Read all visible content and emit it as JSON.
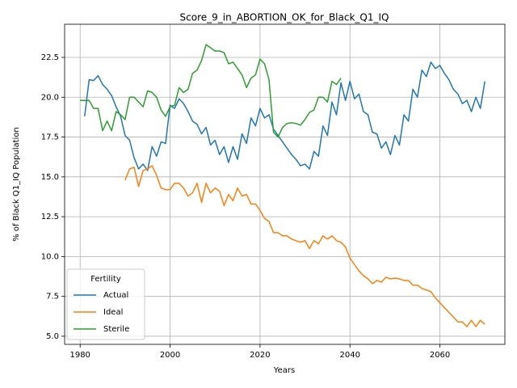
{
  "chart_data": {
    "type": "line",
    "title": "Score_9_in_ABORTION_OK_for_Black_Q1_IQ",
    "x_label": "Years",
    "y_label": "% of Black Q1_IQ Population",
    "legend_title": "Fertility",
    "legend_loc": "lower left",
    "grid": true,
    "xlim": [
      1976.55,
      2074.45
    ],
    "xticks": [
      1980,
      2000,
      2020,
      2040,
      2060
    ],
    "ylim": [
      4.49,
      24.58
    ],
    "yticks": [
      {
        "value": 5,
        "label": "5.0"
      },
      7.5,
      {
        "value": 10,
        "label": "10.0"
      },
      12.5,
      {
        "value": 15,
        "label": "15.0"
      },
      17.5,
      {
        "value": 20,
        "label": "20.0"
      },
      22.5
    ],
    "series": [
      {
        "name": "Actual",
        "color": "#1f77b4",
        "x": [
          1981,
          1982,
          1983,
          1984,
          1985,
          1986,
          1987,
          1988,
          1989,
          1990,
          1991,
          1992,
          1993,
          1994,
          1995,
          1996,
          1997,
          1998,
          1999,
          2000,
          2001,
          2002,
          2003,
          2004,
          2005,
          2006,
          2007,
          2008,
          2009,
          2010,
          2011,
          2012,
          2013,
          2014,
          2015,
          2016,
          2017,
          2018,
          2019,
          2020,
          2021,
          2022,
          2023,
          2024,
          2025,
          2026,
          2027,
          2028,
          2029,
          2030,
          2031,
          2032,
          2033,
          2034,
          2035,
          2036,
          2037,
          2038,
          2039,
          2040,
          2041,
          2042,
          2043,
          2044,
          2045,
          2046,
          2047,
          2048,
          2049,
          2050,
          2051,
          2052,
          2053,
          2054,
          2055,
          2056,
          2057,
          2058,
          2059,
          2060,
          2061,
          2062,
          2063,
          2064,
          2065,
          2066,
          2067,
          2068,
          2069,
          2070
        ],
        "values": [
          18.8,
          21.1,
          21.05,
          21.35,
          20.8,
          20.5,
          20.1,
          19.4,
          18.8,
          17.6,
          17.3,
          16.2,
          15.5,
          15.8,
          15.4,
          16.9,
          16.3,
          17.2,
          17.1,
          19.5,
          19.3,
          19.9,
          19.6,
          19.1,
          18.5,
          18.3,
          17.7,
          18.1,
          17.0,
          17.3,
          16.4,
          16.9,
          15.9,
          16.9,
          16.1,
          17.7,
          17.1,
          18.7,
          18.2,
          19.3,
          18.7,
          18.9,
          18.0,
          17.6,
          17.2,
          16.8,
          16.4,
          16.1,
          15.7,
          15.8,
          15.5,
          16.6,
          16.3,
          18.2,
          17.6,
          19.7,
          18.9,
          20.9,
          19.8,
          21.0,
          19.9,
          20.2,
          19.1,
          18.9,
          17.8,
          17.7,
          16.8,
          17.2,
          16.4,
          17.6,
          17.0,
          18.9,
          18.5,
          20.5,
          20.0,
          21.7,
          21.3,
          22.2,
          21.8,
          22.0,
          21.5,
          21.1,
          20.5,
          20.2,
          19.6,
          19.8,
          19.1,
          20.0,
          19.3,
          21.0
        ]
      },
      {
        "name": "Ideal",
        "color": "#ff7f0e",
        "x": [
          1990,
          1991,
          1992,
          1993,
          1994,
          1995,
          1996,
          1997,
          1998,
          1999,
          2000,
          2001,
          2002,
          2003,
          2004,
          2005,
          2006,
          2007,
          2008,
          2009,
          2010,
          2011,
          2012,
          2013,
          2014,
          2015,
          2016,
          2017,
          2018,
          2019,
          2020,
          2021,
          2022,
          2023,
          2024,
          2025,
          2026,
          2027,
          2028,
          2029,
          2030,
          2031,
          2032,
          2033,
          2034,
          2035,
          2036,
          2037,
          2038,
          2039,
          2040,
          2041,
          2042,
          2043,
          2044,
          2045,
          2046,
          2047,
          2048,
          2049,
          2050,
          2051,
          2052,
          2053,
          2054,
          2055,
          2056,
          2057,
          2058,
          2059,
          2060,
          2061,
          2062,
          2063,
          2064,
          2065,
          2066,
          2067,
          2068,
          2069,
          2070
        ],
        "values": [
          14.8,
          15.5,
          15.6,
          14.4,
          15.4,
          15.5,
          15.7,
          15.1,
          14.3,
          14.2,
          14.2,
          14.6,
          14.6,
          14.3,
          13.8,
          14.0,
          14.6,
          13.4,
          14.6,
          14.0,
          14.3,
          14.1,
          13.2,
          13.9,
          13.5,
          14.3,
          13.8,
          13.9,
          13.3,
          13.3,
          12.9,
          12.4,
          12.2,
          11.5,
          11.5,
          11.3,
          11.3,
          11.1,
          11.0,
          10.9,
          11.0,
          10.5,
          11.0,
          10.8,
          11.3,
          11.1,
          11.3,
          11.0,
          10.9,
          10.6,
          9.9,
          9.5,
          9.1,
          8.8,
          8.6,
          8.3,
          8.5,
          8.4,
          8.7,
          8.6,
          8.65,
          8.6,
          8.5,
          8.5,
          8.2,
          8.2,
          8.0,
          7.9,
          7.8,
          7.4,
          7.1,
          6.8,
          6.5,
          6.2,
          5.9,
          5.9,
          5.6,
          6.0,
          5.6,
          6.0,
          5.75
        ]
      },
      {
        "name": "Sterile",
        "color": "#2ca02c",
        "x": [
          1980,
          1981,
          1982,
          1983,
          1984,
          1985,
          1986,
          1987,
          1988,
          1989,
          1990,
          1991,
          1992,
          1993,
          1994,
          1995,
          1996,
          1997,
          1998,
          1999,
          2000,
          2001,
          2002,
          2003,
          2004,
          2005,
          2006,
          2007,
          2008,
          2009,
          2010,
          2011,
          2012,
          2013,
          2014,
          2015,
          2016,
          2017,
          2018,
          2019,
          2020,
          2021,
          2022,
          2023,
          2024,
          2025,
          2026,
          2027,
          2028,
          2029,
          2030,
          2031,
          2032,
          2033,
          2034,
          2035,
          2036,
          2037,
          2038
        ],
        "values": [
          19.8,
          19.8,
          19.8,
          19.3,
          19.3,
          17.9,
          18.5,
          17.9,
          19.1,
          18.9,
          18.6,
          20.0,
          20.0,
          19.7,
          19.4,
          20.4,
          20.3,
          20.0,
          19.2,
          18.8,
          19.4,
          19.5,
          20.6,
          20.3,
          20.5,
          21.5,
          21.7,
          22.3,
          23.3,
          23.1,
          22.9,
          22.9,
          22.8,
          22.1,
          22.2,
          21.8,
          21.4,
          20.6,
          21.2,
          21.4,
          22.4,
          22.1,
          21.1,
          17.8,
          17.5,
          18.1,
          18.35,
          18.4,
          18.35,
          18.25,
          18.6,
          19.05,
          19.2,
          20.0,
          20.0,
          19.7,
          21.0,
          20.8,
          21.2
        ]
      }
    ]
  }
}
